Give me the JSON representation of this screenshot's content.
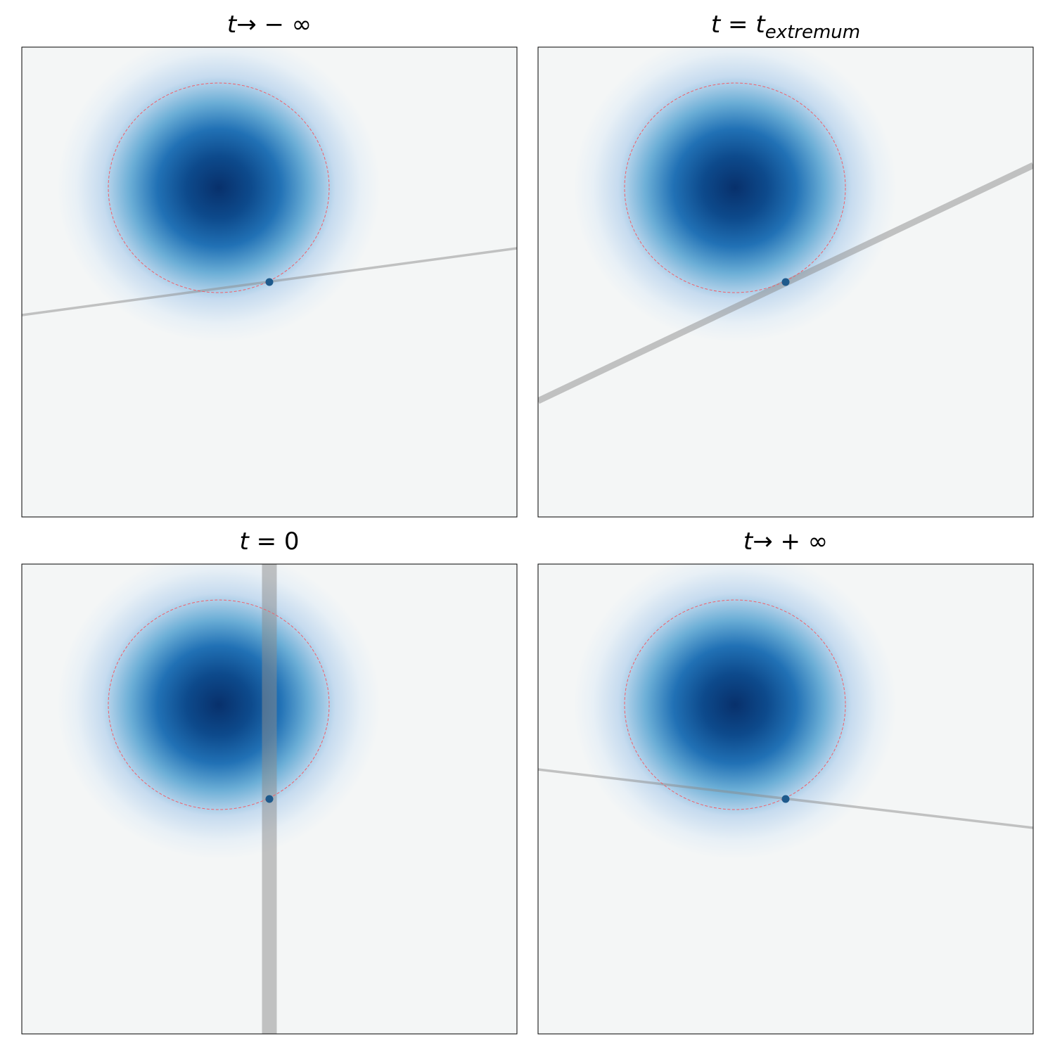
{
  "panels": [
    {
      "title": [
        "t",
        "→ − ∞"
      ]
    },
    {
      "title": [
        "t",
        " = ",
        "t",
        "extremum"
      ]
    },
    {
      "title": [
        "t",
        " = 0"
      ]
    },
    {
      "title": [
        "t",
        "→ + ∞"
      ]
    }
  ]
}
